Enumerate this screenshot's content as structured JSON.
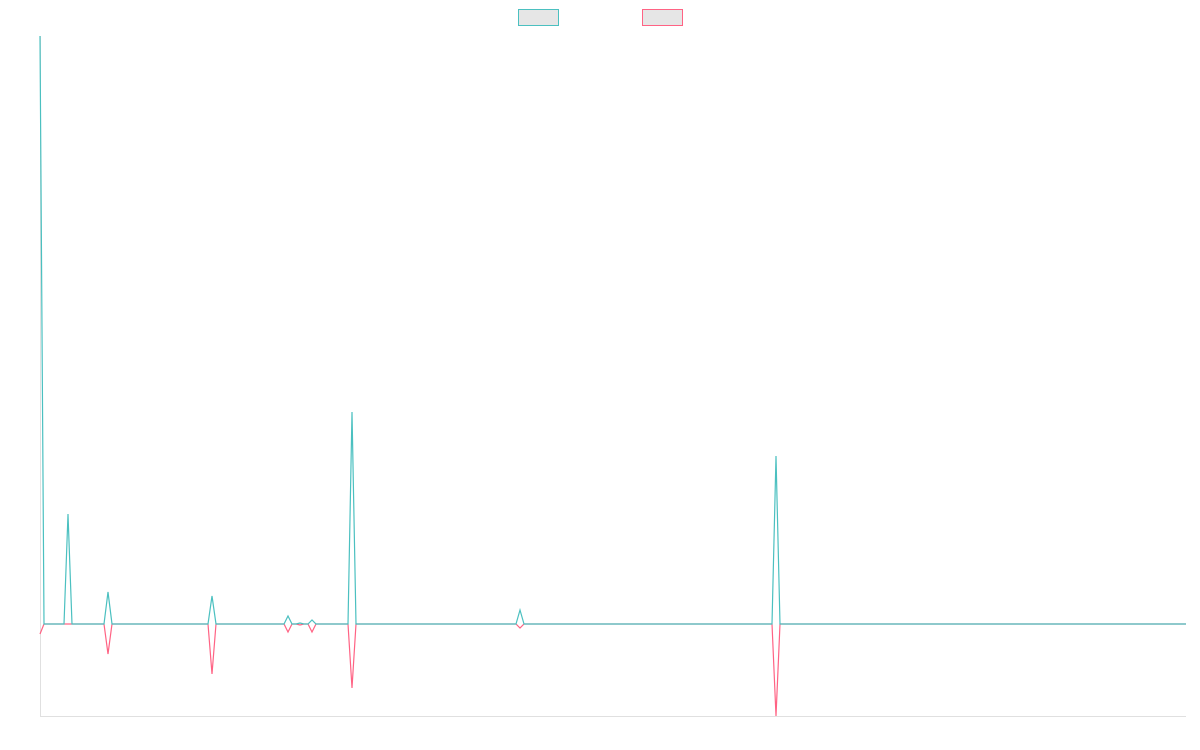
{
  "chart_data": {
    "type": "line",
    "x": [
      0,
      4,
      24,
      28,
      32,
      64,
      68,
      72,
      168,
      172,
      176,
      244,
      248,
      252,
      256,
      260,
      264,
      268,
      272,
      276,
      308,
      312,
      316,
      476,
      480,
      484,
      732,
      736,
      740,
      1146
    ],
    "xlim": [
      0,
      1146
    ],
    "ylim": [
      -92,
      588
    ],
    "series": [
      {
        "color": "#4bc0c0",
        "values": [
          588,
          0,
          0,
          110,
          0,
          0,
          32,
          0,
          0,
          28,
          0,
          0,
          8,
          0,
          0,
          1,
          0,
          0,
          4,
          0,
          0,
          212,
          0,
          0,
          14,
          0,
          0,
          168,
          0,
          0
        ]
      },
      {
        "color": "#ff6384",
        "values": [
          -10,
          0,
          0,
          0,
          0,
          0,
          -30,
          0,
          0,
          -50,
          0,
          0,
          -8,
          0,
          0,
          -1,
          0,
          0,
          -8,
          0,
          0,
          -64,
          0,
          0,
          -4,
          0,
          0,
          -92,
          0,
          0
        ]
      }
    ]
  }
}
